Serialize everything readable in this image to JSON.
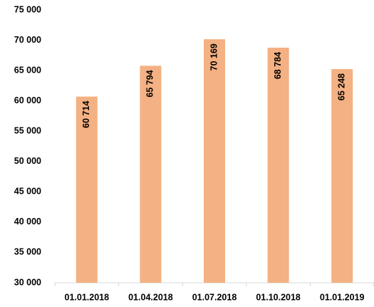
{
  "chart_data": {
    "type": "bar",
    "categories": [
      "01.01.2018",
      "01.04.2018",
      "01.07.2018",
      "01.10.2018",
      "01.01.2019"
    ],
    "values": [
      60714,
      65794,
      70169,
      68784,
      65248
    ],
    "value_labels": [
      "60 714",
      "65 794",
      "70 169",
      "68 784",
      "65 248"
    ],
    "color": "#f4b183",
    "ylim": [
      30000,
      75000
    ],
    "yticks": [
      {
        "value": 30000,
        "label": "30 000"
      },
      {
        "value": 35000,
        "label": "35 000"
      },
      {
        "value": 40000,
        "label": "40 000"
      },
      {
        "value": 45000,
        "label": "45 000"
      },
      {
        "value": 50000,
        "label": "50 000"
      },
      {
        "value": 55000,
        "label": "55 000"
      },
      {
        "value": 60000,
        "label": "60 000"
      },
      {
        "value": 65000,
        "label": "65 000"
      },
      {
        "value": 70000,
        "label": "70 000"
      },
      {
        "value": 75000,
        "label": "75 000"
      }
    ],
    "grid": false
  }
}
